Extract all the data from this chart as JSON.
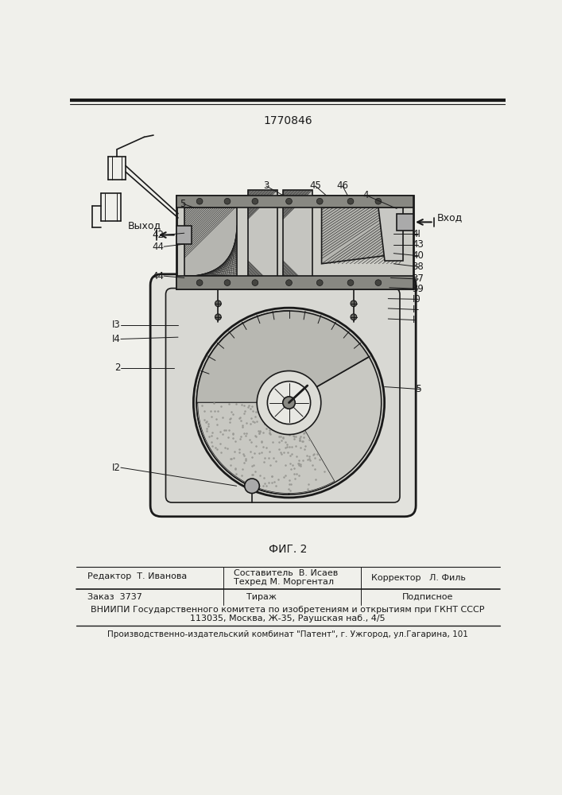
{
  "patent_number": "1770846",
  "fig_label": "ФИГ. 2",
  "background_color": "#f0f0eb",
  "line_color": "#1a1a1a",
  "editor_line": "Редактор  Т. Иванова",
  "composer_line": "Составитель  В. Исаев",
  "techred_line": "Техред М. Моргентал",
  "corrector_line": "Корректор   Л. Филь",
  "order_line": "Заказ  3737",
  "tirazh_line": "Тираж",
  "podpisnoe_line": "Подписное",
  "vniiipi_line": "ВНИИПИ Государственного комитета по изобретениям и открытиям при ГКНТ СССР",
  "address_line": "113035, Москва, Ж-35, Раушская наб., 4/5",
  "publisher_line": "Производственно-издательский комбинат \"Патент\", г. Ужгород, ул.Гагарина, 101",
  "label_vyhod": "Выход",
  "label_vhod": "Вход"
}
